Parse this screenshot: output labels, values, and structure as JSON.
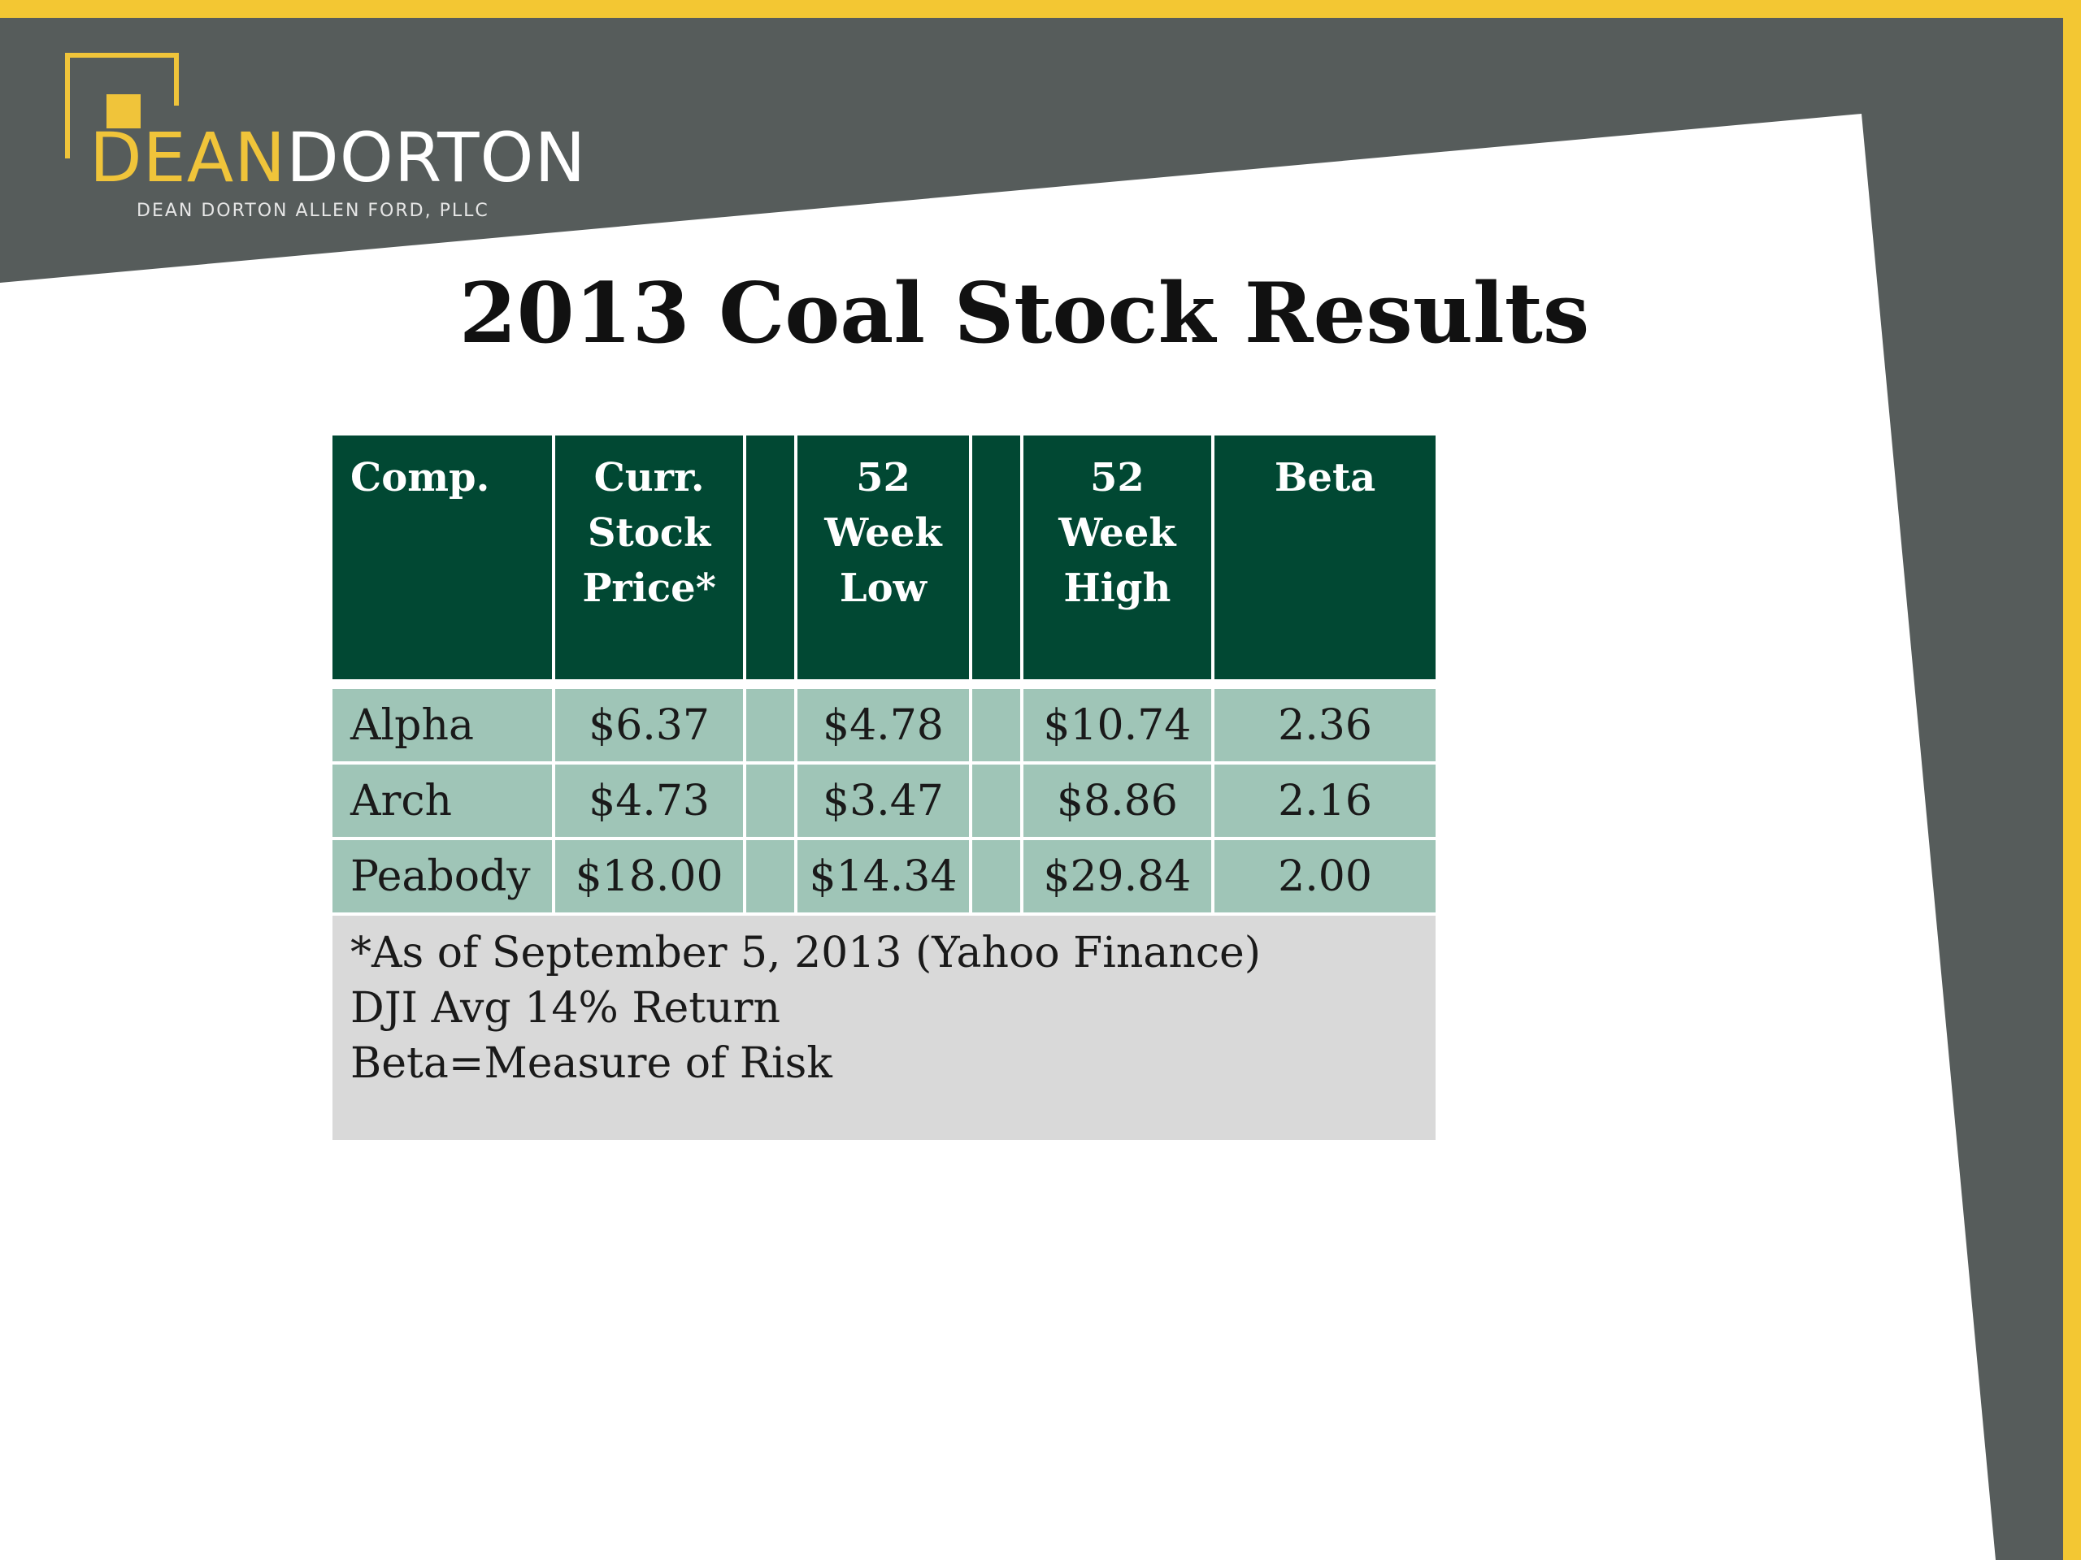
{
  "logo": {
    "word_part1": "DEAN",
    "word_part2": "DORTON",
    "subtitle": "DEAN DORTON ALLEN FORD, PLLC"
  },
  "slide": {
    "title": "2013 Coal Stock Results"
  },
  "table": {
    "headers": {
      "company": "Comp.",
      "price_line1": "Curr.",
      "price_line2": "Stock",
      "price_line3": "Price*",
      "low_line1": "52",
      "low_line2": "Week",
      "low_line3": "Low",
      "high_line1": "52",
      "high_line2": "Week",
      "high_line3": "High",
      "beta": "Beta"
    },
    "rows": [
      {
        "company": "Alpha",
        "price": "$6.37",
        "low": "$4.78",
        "high": "$10.74",
        "beta": "2.36"
      },
      {
        "company": "Arch",
        "price": "$4.73",
        "low": "$3.47",
        "high": "$8.86",
        "beta": "2.16"
      },
      {
        "company": "Peabody",
        "price": "$18.00",
        "low": "$14.34",
        "high": "$29.84",
        "beta": "2.00"
      }
    ],
    "notes": [
      "*As of September 5, 2013 (Yahoo Finance)",
      "DJI Avg 14% Return",
      "Beta=Measure of Risk"
    ]
  },
  "colors": {
    "header_green": "#014833",
    "row_green": "#9fc5b7",
    "note_gray": "#d9d9d9",
    "frame_gray": "#565c5b",
    "accent_yellow": "#f3c733"
  }
}
